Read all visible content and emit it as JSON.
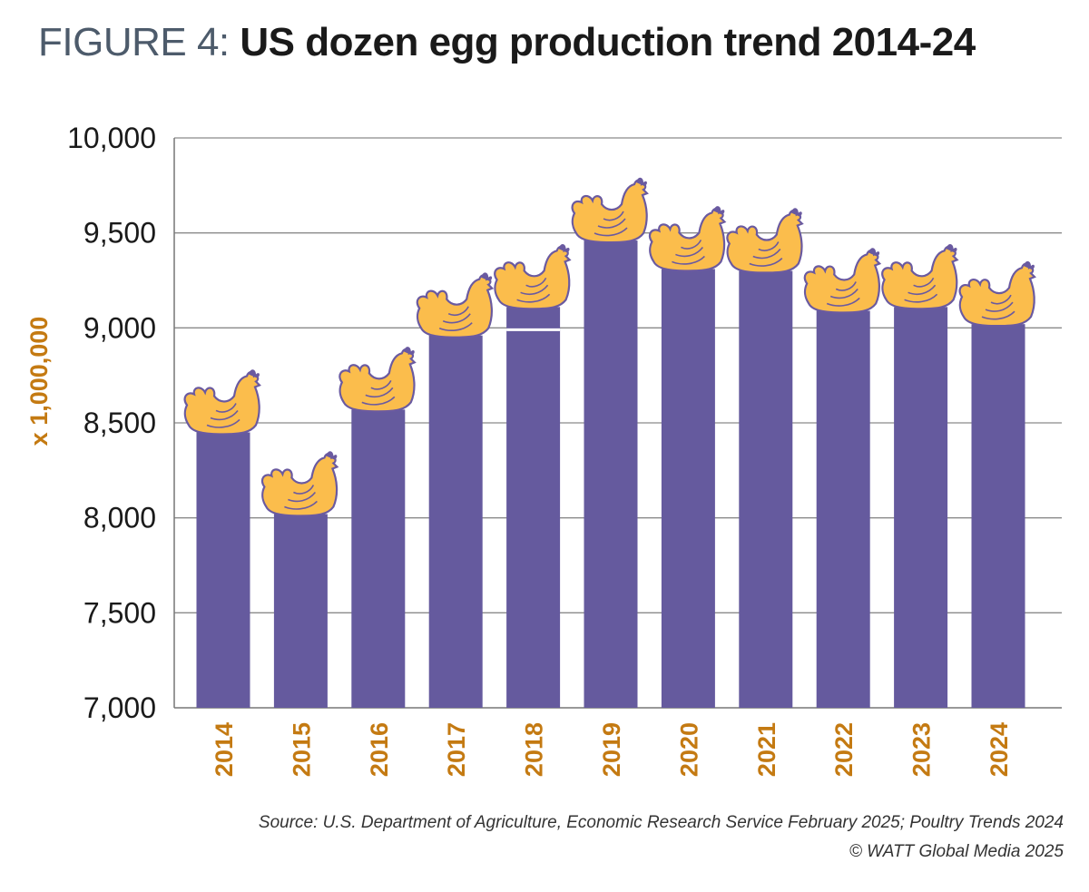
{
  "chart_data": {
    "type": "bar",
    "title_prefix": "FIGURE 4:",
    "title": "US dozen egg production trend 2014-24",
    "xlabel": "",
    "ylabel": "x 1,000,000",
    "categories": [
      "2014",
      "2015",
      "2016",
      "2017",
      "2018",
      "2019",
      "2020",
      "2021",
      "2022",
      "2023",
      "2024"
    ],
    "values": [
      8450,
      8020,
      8570,
      8960,
      9110,
      9460,
      9310,
      9300,
      9090,
      9110,
      9020
    ],
    "ylim": [
      7000,
      10000
    ],
    "yticks": [
      7000,
      7500,
      8000,
      8500,
      9000,
      9500,
      10000
    ],
    "ytick_labels": [
      "7,000",
      "7,500",
      "8,000",
      "8,500",
      "9,000",
      "9,500",
      "10,000"
    ],
    "grid": true,
    "legend": "none",
    "marker_icon": "hen-icon",
    "colors": {
      "bar": "#655a9e",
      "hen_fill": "#fbbd4c",
      "hen_outline": "#6a5aa0",
      "axis_labels": "#c47a12",
      "grid": "#8a8a8a"
    }
  },
  "source": "Source: U.S. Department of Agriculture, Economic Research Service February 2025; Poultry Trends 2024",
  "copyright": "© WATT Global Media 2025"
}
